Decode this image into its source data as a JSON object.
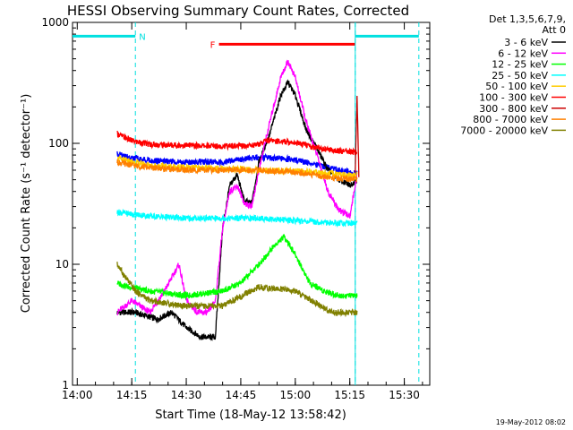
{
  "chart_data": {
    "type": "line",
    "title": "HESSI Observing Summary Count Rates, Corrected",
    "xlabel": "Start Time (18-May-12 13:58:42)",
    "ylabel": "Corrected Count Rate (s⁻¹ detector⁻¹)",
    "y_scale": "log",
    "ylim": [
      1,
      1000
    ],
    "xlim_minutes": [
      "13:58:42",
      "15:37:00"
    ],
    "x_ticks": [
      "14:00",
      "14:15",
      "14:30",
      "14:45",
      "15:00",
      "15:15",
      "15:30"
    ],
    "y_ticks": [
      "1",
      "10",
      "100",
      "1000"
    ],
    "legend_header": [
      "Det 1,3,5,6,7,9,",
      "Att 0"
    ],
    "legend_placement": "top-right, outside plot",
    "footer_date": "19-May-2012 08:02",
    "grid": false,
    "flags": [
      {
        "label": "N",
        "color": "#00e0e0",
        "segments": [
          [
            "13:58:42",
            "14:16:00"
          ],
          [
            "15:16:30",
            "15:34:00"
          ]
        ],
        "level": 770,
        "dashed_markers": [
          "14:16:00",
          "15:16:30",
          "15:34:00"
        ]
      },
      {
        "label": "F",
        "color": "#ff0000",
        "segments": [
          [
            "14:39:00",
            "15:16:30"
          ]
        ],
        "level": 660
      }
    ],
    "series": [
      {
        "name": "3 - 6 keV",
        "color": "#000000",
        "x": [
          "14:11",
          "14:16",
          "14:22",
          "14:26",
          "14:30",
          "14:34",
          "14:36",
          "14:38",
          "14:40",
          "14:42",
          "14:44",
          "14:46",
          "14:48",
          "14:50",
          "14:53",
          "14:56",
          "14:58",
          "15:00",
          "15:03",
          "15:06",
          "15:09",
          "15:12",
          "15:15",
          "15:17"
        ],
        "y": [
          4,
          4,
          3.5,
          4,
          3,
          2.5,
          2.5,
          2.5,
          20,
          45,
          55,
          33,
          32,
          70,
          120,
          250,
          320,
          250,
          130,
          90,
          60,
          50,
          45,
          50
        ]
      },
      {
        "name": "6 - 12 keV",
        "color": "#ff00ff",
        "x": [
          "14:11",
          "14:15",
          "14:20",
          "14:24",
          "14:28",
          "14:30",
          "14:33",
          "14:36",
          "14:38",
          "14:40",
          "14:42",
          "14:44",
          "14:46",
          "14:48",
          "14:50",
          "14:53",
          "14:56",
          "14:58",
          "15:00",
          "15:03",
          "15:06",
          "15:09",
          "15:12",
          "15:15",
          "15:17"
        ],
        "y": [
          4,
          5,
          4,
          6,
          10,
          5,
          4,
          4,
          5,
          20,
          40,
          45,
          32,
          30,
          60,
          150,
          350,
          480,
          350,
          150,
          80,
          40,
          28,
          25,
          55
        ]
      },
      {
        "name": "12 - 25 keV",
        "color": "#00ff00",
        "x": [
          "14:11",
          "14:14",
          "14:20",
          "14:30",
          "14:40",
          "14:45",
          "14:50",
          "14:54",
          "14:57",
          "15:00",
          "15:04",
          "15:08",
          "15:12",
          "15:17"
        ],
        "y": [
          7,
          6.5,
          6,
          5.5,
          6,
          7,
          10,
          14,
          17,
          12,
          7,
          6,
          5.5,
          5.5
        ]
      },
      {
        "name": "25 - 50 keV",
        "color": "#00ffff",
        "x": [
          "14:11",
          "14:15",
          "14:20",
          "14:30",
          "14:40",
          "14:50",
          "15:00",
          "15:10",
          "15:17"
        ],
        "y": [
          27,
          26,
          25,
          24,
          24,
          24,
          23,
          22,
          22
        ]
      },
      {
        "name": "50 - 100 keV",
        "color": "#ffcc00",
        "x": [
          "14:11",
          "14:15",
          "14:20",
          "14:30",
          "14:40",
          "14:50",
          "15:00",
          "15:10",
          "15:17"
        ],
        "y": [
          75,
          70,
          66,
          63,
          62,
          60,
          59,
          56,
          54
        ]
      },
      {
        "name": "100 - 300 keV",
        "color": "#ff0000",
        "x": [
          "14:11",
          "14:15",
          "14:20",
          "14:30",
          "14:40",
          "14:46",
          "14:50",
          "14:52",
          "15:00",
          "15:05",
          "15:10",
          "15:17"
        ],
        "y": [
          120,
          105,
          98,
          96,
          95,
          95,
          98,
          106,
          102,
          93,
          88,
          84
        ]
      },
      {
        "name": "300 - 800 keV",
        "color": "#cc0000",
        "x": [
          "15:16:30",
          "15:17",
          "15:17:30"
        ],
        "y": [
          60,
          240,
          55
        ]
      },
      {
        "name": "800 - 7000 keV",
        "color": "#ff8000",
        "x": [
          "14:11",
          "14:15",
          "14:20",
          "14:30",
          "14:40",
          "14:50",
          "15:00",
          "15:10",
          "15:17"
        ],
        "y": [
          70,
          66,
          63,
          60,
          60,
          60,
          58,
          52,
          50
        ]
      },
      {
        "name": "7000 - 20000 keV",
        "color": "#808000",
        "x": [
          "14:11",
          "14:13",
          "14:16",
          "14:20",
          "14:30",
          "14:40",
          "14:50",
          "15:00",
          "15:10",
          "15:17"
        ],
        "y": [
          10,
          8,
          6,
          5,
          4.5,
          4.5,
          6.5,
          6,
          4,
          4
        ]
      }
    ],
    "blue_series": {
      "color": "#0000ff",
      "x": [
        "14:11",
        "14:15",
        "14:20",
        "14:30",
        "14:40",
        "14:50",
        "15:00",
        "15:10",
        "15:17"
      ],
      "y": [
        82,
        76,
        72,
        70,
        70,
        77,
        73,
        62,
        56
      ]
    }
  }
}
